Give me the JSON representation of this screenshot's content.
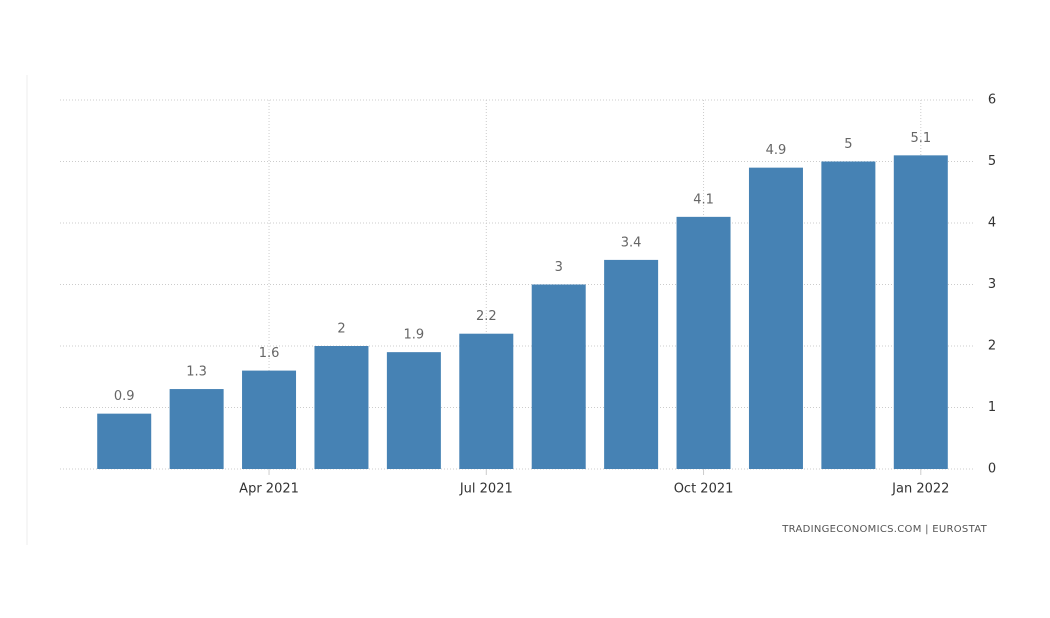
{
  "chart_data": {
    "type": "bar",
    "categories": [
      null,
      null,
      "Apr 2021",
      null,
      null,
      "Jul 2021",
      null,
      null,
      "Oct 2021",
      null,
      null,
      "Jan 2022"
    ],
    "values": [
      0.9,
      1.3,
      1.6,
      2,
      1.9,
      2.2,
      3,
      3.4,
      4.1,
      4.9,
      5,
      5.1
    ],
    "color": "#4682b4",
    "ylim": [
      0,
      6
    ],
    "yticks": [
      0,
      1,
      2,
      3,
      4,
      5,
      6
    ],
    "grid": true,
    "source": "TRADINGECONOMICS.COM | EUROSTAT"
  }
}
